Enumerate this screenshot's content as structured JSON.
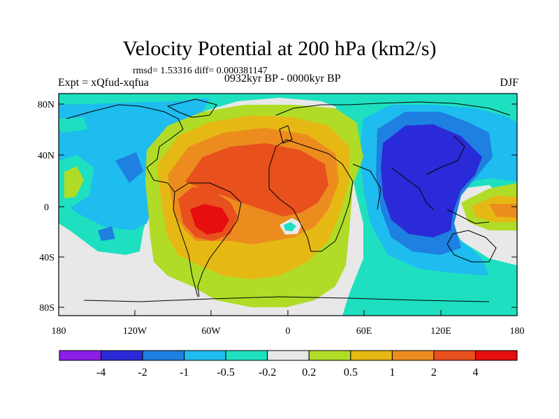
{
  "title": "Velocity Potential at 200 hPa (km2/s)",
  "stats": "rmsd= 1.53316 diff= 0.000381147",
  "experiment": "Expt = xQfud-xqfua",
  "period": "0932kyr BP - 0000kyr BP",
  "season": "DJF",
  "lat_ticks": [
    "80N",
    "40N",
    "0",
    "40S",
    "80S"
  ],
  "lon_ticks": [
    "180",
    "120W",
    "60W",
    "0",
    "60E",
    "120E",
    "180"
  ],
  "colorbar": {
    "colors": [
      "#8c1ee6",
      "#2a2ad8",
      "#1e80e0",
      "#1ebcef",
      "#1ee0c0",
      "#e8e8e8",
      "#b0dc28",
      "#e6b814",
      "#ec8c1e",
      "#e8501e",
      "#e60e0e"
    ],
    "labels": [
      "-4",
      "-2",
      "-1",
      "-0.5",
      "-0.2",
      "0.2",
      "0.5",
      "1",
      "2",
      "4"
    ]
  }
}
